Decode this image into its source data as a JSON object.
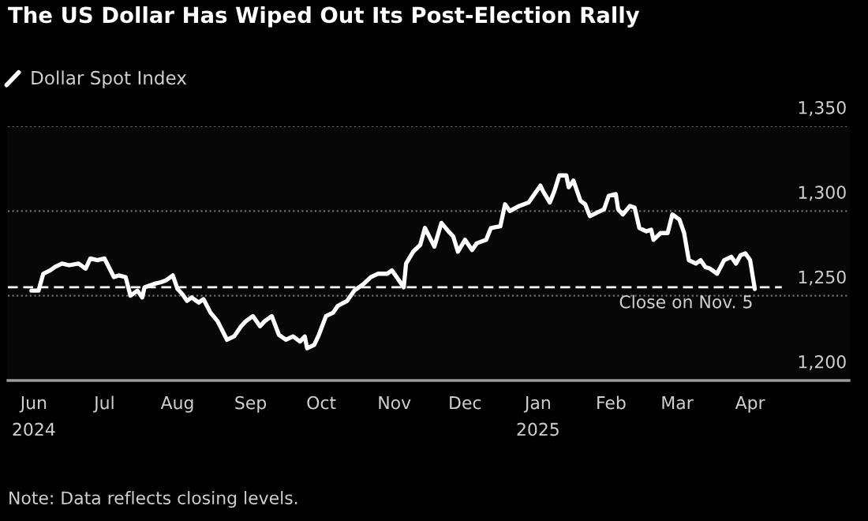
{
  "chart_data": {
    "type": "line",
    "title": "The US Dollar Has Wiped Out Its Post-Election Rally",
    "x": [
      "2024-05-31",
      "2024-06-03",
      "2024-06-05",
      "2024-06-08",
      "2024-06-10",
      "2024-06-13",
      "2024-06-16",
      "2024-06-20",
      "2024-06-23",
      "2024-06-25",
      "2024-06-28",
      "2024-07-01",
      "2024-07-05",
      "2024-07-07",
      "2024-07-10",
      "2024-07-12",
      "2024-07-15",
      "2024-07-17",
      "2024-07-18",
      "2024-07-22",
      "2024-07-25",
      "2024-07-27",
      "2024-07-30",
      "2024-08-01",
      "2024-08-03",
      "2024-08-05",
      "2024-08-07",
      "2024-08-10",
      "2024-08-12",
      "2024-08-15",
      "2024-08-18",
      "2024-08-22",
      "2024-08-25",
      "2024-08-28",
      "2024-08-30",
      "2024-09-02",
      "2024-09-05",
      "2024-09-07",
      "2024-09-10",
      "2024-09-13",
      "2024-09-16",
      "2024-09-19",
      "2024-09-22",
      "2024-09-24",
      "2024-09-25",
      "2024-09-28",
      "2024-09-30",
      "2024-10-03",
      "2024-10-06",
      "2024-10-08",
      "2024-10-12",
      "2024-10-15",
      "2024-10-19",
      "2024-10-22",
      "2024-10-25",
      "2024-10-29",
      "2024-10-31",
      "2024-11-02",
      "2024-11-05",
      "2024-11-06",
      "2024-11-09",
      "2024-11-12",
      "2024-11-14",
      "2024-11-18",
      "2024-11-21",
      "2024-11-24",
      "2024-11-26",
      "2024-11-28",
      "2024-12-01",
      "2024-12-04",
      "2024-12-06",
      "2024-12-10",
      "2024-12-12",
      "2024-12-16",
      "2024-12-18",
      "2024-12-20",
      "2024-12-24",
      "2024-12-28",
      "2025-01-02",
      "2025-01-03",
      "2025-01-06",
      "2025-01-08",
      "2025-01-10",
      "2025-01-13",
      "2025-01-14",
      "2025-01-16",
      "2025-01-19",
      "2025-01-21",
      "2025-01-23",
      "2025-01-26",
      "2025-01-29",
      "2025-01-31",
      "2025-02-03",
      "2025-02-04",
      "2025-02-06",
      "2025-02-09",
      "2025-02-11",
      "2025-02-13",
      "2025-02-16",
      "2025-02-18",
      "2025-02-19",
      "2025-02-22",
      "2025-02-25",
      "2025-02-27",
      "2025-03-02",
      "2025-03-04",
      "2025-03-06",
      "2025-03-09",
      "2025-03-11",
      "2025-03-13",
      "2025-03-15",
      "2025-03-18",
      "2025-03-21",
      "2025-03-24",
      "2025-03-26",
      "2025-03-28",
      "2025-03-30",
      "2025-04-01",
      "2025-04-03"
    ],
    "series": [
      {
        "name": "Dollar Spot Index",
        "color": "#ffffff",
        "values": [
          1253,
          1253,
          1263,
          1265,
          1267,
          1269,
          1268,
          1269,
          1266,
          1272,
          1271,
          1272,
          1261,
          1262,
          1261,
          1250,
          1253,
          1249,
          1255,
          1257,
          1258,
          1259,
          1262,
          1254,
          1251,
          1247,
          1249,
          1246,
          1248,
          1240,
          1235,
          1224,
          1226,
          1232,
          1235,
          1238,
          1232,
          1235,
          1238,
          1227,
          1224,
          1226,
          1223,
          1226,
          1219,
          1221,
          1227,
          1238,
          1240,
          1244,
          1247,
          1253,
          1257,
          1261,
          1263,
          1263,
          1265,
          1261,
          1255,
          1269,
          1276,
          1280,
          1290,
          1279,
          1293,
          1288,
          1285,
          1276,
          1283,
          1277,
          1281,
          1283,
          1290,
          1291,
          1304,
          1300,
          1303,
          1305,
          1315,
          1312,
          1305,
          1312,
          1321,
          1321,
          1314,
          1318,
          1306,
          1304,
          1297,
          1299,
          1301,
          1309,
          1310,
          1301,
          1298,
          1303,
          1302,
          1290,
          1288,
          1289,
          1283,
          1287,
          1287,
          1298,
          1295,
          1287,
          1271,
          1269,
          1271,
          1267,
          1266,
          1263,
          1271,
          1273,
          1269,
          1274,
          1275,
          1271,
          1254
        ]
      }
    ],
    "xlim": [
      "2024-05-21",
      "2025-05-13"
    ],
    "xticks": [
      {
        "value": "2024-06-01",
        "label": "Jun\n2024"
      },
      {
        "value": "2024-07-01",
        "label": "Jul"
      },
      {
        "value": "2024-08-01",
        "label": "Aug"
      },
      {
        "value": "2024-09-01",
        "label": "Sep"
      },
      {
        "value": "2024-10-01",
        "label": "Oct"
      },
      {
        "value": "2024-11-01",
        "label": "Nov"
      },
      {
        "value": "2024-12-01",
        "label": "Dec"
      },
      {
        "value": "2025-01-01",
        "label": "Jan\n2025"
      },
      {
        "value": "2025-02-01",
        "label": "Feb"
      },
      {
        "value": "2025-03-01",
        "label": "Mar"
      },
      {
        "value": "2025-04-01",
        "label": "Apr"
      }
    ],
    "ylim": [
      1200,
      1350
    ],
    "yticks": [
      {
        "value": 1200,
        "label": "1,200"
      },
      {
        "value": 1250,
        "label": "1,250"
      },
      {
        "value": 1300,
        "label": "1,300"
      },
      {
        "value": 1350,
        "label": "1,350"
      }
    ],
    "grid": "y",
    "legend": "top left",
    "ref_lines": [
      {
        "axis": "y",
        "value": 1255,
        "label": "Close on Nov. 5",
        "color": "#ffffff",
        "line_style": "dashed"
      }
    ],
    "annotations": [
      "Note: Data reflects closing levels."
    ]
  }
}
